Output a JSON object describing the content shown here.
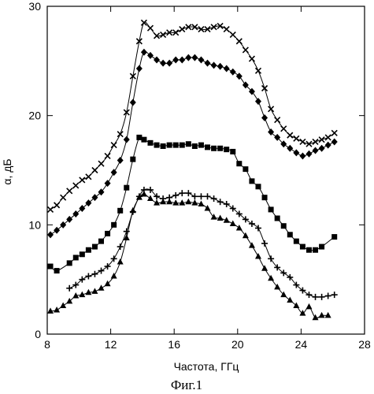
{
  "chart_data": {
    "type": "line",
    "xlabel": "Частота, ГГц",
    "ylabel": "α, дБ",
    "caption": "Фиг.1",
    "xlim": [
      8,
      28
    ],
    "ylim": [
      0,
      30
    ],
    "xticks": [
      8,
      12,
      16,
      20,
      24,
      28
    ],
    "xtick_labels": [
      "8",
      "12",
      "16",
      "20",
      "24",
      "28"
    ],
    "yticks": [
      0,
      10,
      20,
      30
    ],
    "ytick_labels": [
      "0",
      "10",
      "20",
      "30"
    ],
    "grid": false,
    "series": [
      {
        "marker": "x",
        "x": [
          8.2,
          8.6,
          9.0,
          9.4,
          9.8,
          10.2,
          10.6,
          11.0,
          11.4,
          11.8,
          12.2,
          12.6,
          13.0,
          13.4,
          13.8,
          14.1,
          14.5,
          14.9,
          15.3,
          15.7,
          16.1,
          16.5,
          16.9,
          17.3,
          17.7,
          18.1,
          18.5,
          18.9,
          19.3,
          19.7,
          20.1,
          20.5,
          20.9,
          21.3,
          21.7,
          22.1,
          22.5,
          22.9,
          23.3,
          23.7,
          24.1,
          24.5,
          24.9,
          25.3,
          25.7,
          26.1
        ],
        "y": [
          11.4,
          11.8,
          12.5,
          13.1,
          13.6,
          14.1,
          14.4,
          15.0,
          15.6,
          16.3,
          17.3,
          18.3,
          20.3,
          23.6,
          26.8,
          28.5,
          28.0,
          27.3,
          27.4,
          27.6,
          27.6,
          27.9,
          28.1,
          28.1,
          27.9,
          27.9,
          28.1,
          28.2,
          27.9,
          27.4,
          26.8,
          26.0,
          25.2,
          24.1,
          22.5,
          20.6,
          19.6,
          18.8,
          18.2,
          17.9,
          17.6,
          17.4,
          17.6,
          17.8,
          18.0,
          18.4
        ]
      },
      {
        "marker": "diamond",
        "x": [
          8.2,
          8.6,
          9.0,
          9.4,
          9.8,
          10.2,
          10.6,
          11.0,
          11.4,
          11.8,
          12.2,
          12.6,
          13.0,
          13.4,
          13.8,
          14.1,
          14.5,
          14.9,
          15.3,
          15.7,
          16.1,
          16.5,
          16.9,
          17.3,
          17.7,
          18.1,
          18.5,
          18.9,
          19.3,
          19.7,
          20.1,
          20.5,
          20.9,
          21.3,
          21.7,
          22.1,
          22.5,
          22.9,
          23.3,
          23.7,
          24.1,
          24.5,
          24.9,
          25.3,
          25.7,
          26.1
        ],
        "y": [
          9.1,
          9.5,
          10.0,
          10.5,
          11.0,
          11.5,
          12.0,
          12.5,
          13.0,
          13.8,
          14.8,
          15.9,
          17.8,
          21.2,
          24.3,
          25.8,
          25.5,
          25.1,
          24.8,
          24.8,
          25.1,
          25.1,
          25.3,
          25.3,
          25.1,
          24.8,
          24.6,
          24.5,
          24.3,
          24.0,
          23.6,
          22.8,
          22.2,
          21.3,
          19.8,
          18.5,
          18.0,
          17.4,
          17.0,
          16.6,
          16.3,
          16.5,
          16.8,
          17.0,
          17.3,
          17.6
        ]
      },
      {
        "marker": "square",
        "x": [
          8.2,
          8.6,
          9.4,
          9.8,
          10.2,
          10.6,
          11.0,
          11.4,
          11.8,
          12.2,
          12.6,
          13.0,
          13.4,
          13.8,
          14.1,
          14.5,
          14.9,
          15.3,
          15.7,
          16.1,
          16.5,
          16.9,
          17.3,
          17.7,
          18.1,
          18.5,
          18.9,
          19.3,
          19.7,
          20.1,
          20.5,
          20.9,
          21.3,
          21.7,
          22.1,
          22.5,
          22.9,
          23.3,
          23.7,
          24.1,
          24.5,
          24.9,
          25.3,
          26.1
        ],
        "y": [
          6.2,
          5.8,
          6.5,
          7.0,
          7.3,
          7.7,
          8.0,
          8.5,
          9.2,
          10.0,
          11.3,
          13.4,
          16.0,
          18.0,
          17.8,
          17.5,
          17.3,
          17.2,
          17.3,
          17.3,
          17.3,
          17.4,
          17.2,
          17.3,
          17.1,
          17.0,
          17.0,
          16.9,
          16.7,
          15.6,
          15.1,
          14.0,
          13.5,
          12.5,
          11.4,
          10.6,
          9.9,
          9.1,
          8.5,
          8.0,
          7.7,
          7.7,
          8.0,
          8.9
        ]
      },
      {
        "marker": "plus",
        "x": [
          9.4,
          9.8,
          10.2,
          10.6,
          11.0,
          11.4,
          11.8,
          12.2,
          12.6,
          13.0,
          13.4,
          13.8,
          14.1,
          14.5,
          14.9,
          15.3,
          15.7,
          16.1,
          16.5,
          16.9,
          17.3,
          17.7,
          18.1,
          18.5,
          18.9,
          19.3,
          19.7,
          20.1,
          20.5,
          20.9,
          21.3,
          21.7,
          22.1,
          22.5,
          22.9,
          23.3,
          23.7,
          24.1,
          24.5,
          24.9,
          25.3,
          25.7,
          26.1
        ],
        "y": [
          4.2,
          4.5,
          5.0,
          5.3,
          5.5,
          5.8,
          6.2,
          6.9,
          8.0,
          9.4,
          11.2,
          12.6,
          13.2,
          13.2,
          12.6,
          12.4,
          12.5,
          12.7,
          12.9,
          12.9,
          12.6,
          12.6,
          12.6,
          12.4,
          12.1,
          11.9,
          11.5,
          11.0,
          10.5,
          10.1,
          9.7,
          8.3,
          6.9,
          6.1,
          5.6,
          5.2,
          4.5,
          4.0,
          3.6,
          3.4,
          3.4,
          3.5,
          3.6
        ]
      },
      {
        "marker": "triangle",
        "x": [
          8.2,
          8.6,
          9.0,
          9.4,
          9.8,
          10.2,
          10.6,
          11.0,
          11.4,
          11.8,
          12.2,
          12.6,
          13.0,
          13.4,
          13.8,
          14.1,
          14.5,
          14.9,
          15.3,
          15.7,
          16.1,
          16.5,
          16.9,
          17.3,
          17.7,
          18.1,
          18.5,
          18.9,
          19.3,
          19.7,
          20.1,
          20.5,
          20.9,
          21.3,
          21.7,
          22.1,
          22.5,
          22.9,
          23.3,
          23.7,
          24.1,
          24.5,
          24.9,
          25.3,
          25.7
        ],
        "y": [
          2.1,
          2.2,
          2.6,
          3.0,
          3.5,
          3.6,
          3.8,
          3.9,
          4.2,
          4.6,
          5.3,
          6.6,
          8.8,
          11.3,
          12.5,
          12.8,
          12.4,
          12.0,
          12.1,
          12.1,
          12.0,
          12.0,
          12.1,
          12.0,
          11.9,
          11.5,
          10.7,
          10.6,
          10.4,
          10.1,
          9.7,
          9.0,
          8.1,
          7.1,
          6.0,
          5.1,
          4.3,
          3.6,
          3.1,
          2.6,
          1.9,
          2.5,
          1.5,
          1.7,
          1.7
        ]
      }
    ]
  }
}
